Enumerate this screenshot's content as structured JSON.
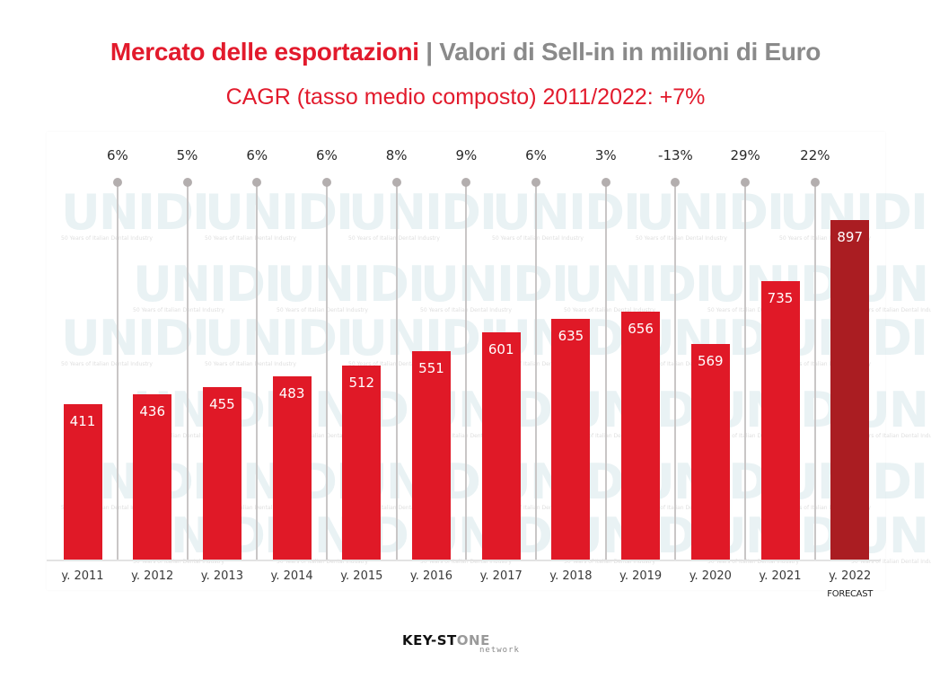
{
  "header": {
    "title_red": "Mercato delle esportazioni",
    "title_sep": " | ",
    "title_gray": "Valori di Sell-in in milioni di Euro",
    "subtitle": "CAGR (tasso medio composto) 2011/2022: +7%"
  },
  "colors": {
    "bar": "#e01927",
    "bar_forecast": "#aa1d22",
    "title_red": "#e21a2c",
    "title_gray": "#8a8a8a",
    "separator": "#c9c6c6"
  },
  "watermark": {
    "text": "UNIDI",
    "tagline": "50 Years of Italian Dental Industry"
  },
  "footer": {
    "logo_main_dark": "KEY-ST",
    "logo_main_gray": "ONE",
    "logo_sub": "network"
  },
  "chart_data": {
    "type": "bar",
    "title": "Mercato delle esportazioni | Valori di Sell-in in milioni di Euro",
    "subtitle": "CAGR (tasso medio composto) 2011/2022: +7%",
    "xlabel": "",
    "ylabel": "milioni di Euro",
    "ylim": [
      0,
      900
    ],
    "grid": false,
    "legend": null,
    "categories": [
      "y. 2011",
      "y. 2012",
      "y. 2013",
      "y. 2014",
      "y. 2015",
      "y. 2016",
      "y. 2017",
      "y. 2018",
      "y. 2019",
      "y. 2020",
      "y. 2021",
      "y. 2022"
    ],
    "values": [
      411,
      436,
      455,
      483,
      512,
      551,
      601,
      635,
      656,
      569,
      735,
      897
    ],
    "category_sublabels": [
      "",
      "",
      "",
      "",
      "",
      "",
      "",
      "",
      "",
      "",
      "",
      "FORECAST"
    ],
    "forecast_index": 11,
    "growth_rates": {
      "labels": [
        "6%",
        "5%",
        "6%",
        "6%",
        "8%",
        "9%",
        "6%",
        "3%",
        "-13%",
        "29%",
        "22%"
      ],
      "values": [
        6,
        5,
        6,
        6,
        8,
        9,
        6,
        3,
        -13,
        29,
        22
      ],
      "between": [
        "2011-2012",
        "2012-2013",
        "2013-2014",
        "2014-2015",
        "2015-2016",
        "2016-2017",
        "2017-2018",
        "2018-2019",
        "2019-2020",
        "2020-2021",
        "2021-2022"
      ]
    },
    "cagr": "+7%"
  }
}
